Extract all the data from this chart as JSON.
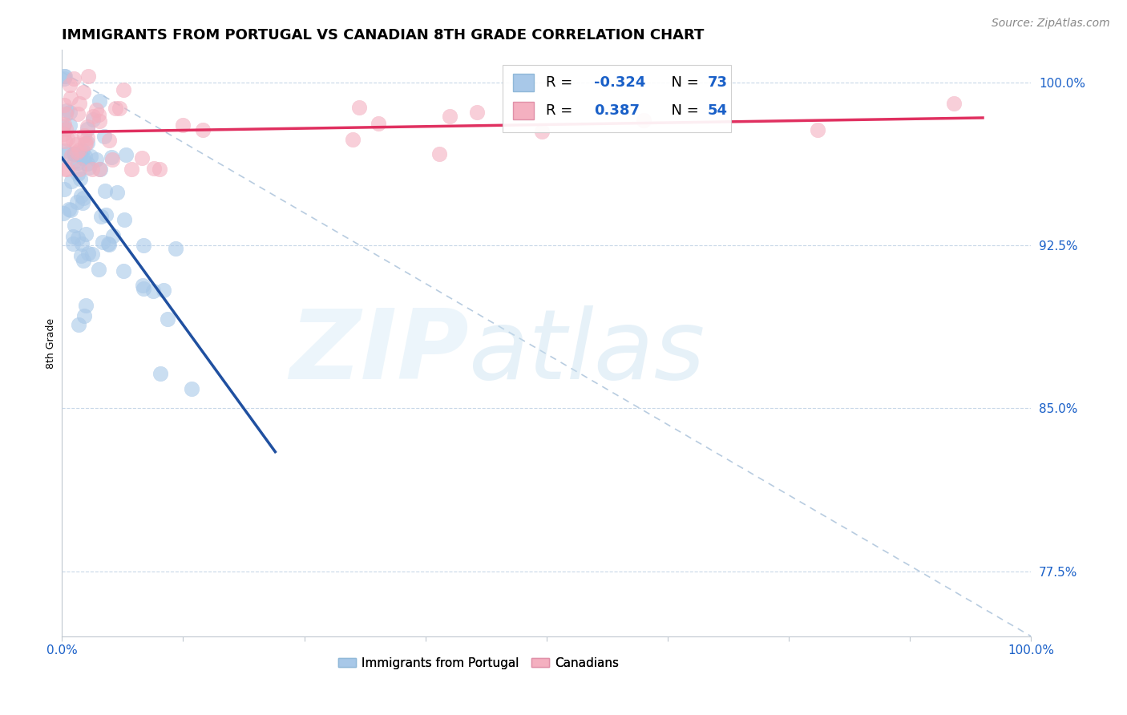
{
  "title": "IMMIGRANTS FROM PORTUGAL VS CANADIAN 8TH GRADE CORRELATION CHART",
  "source": "Source: ZipAtlas.com",
  "ylabel": "8th Grade",
  "ytick_values": [
    0.775,
    0.85,
    0.925,
    1.0
  ],
  "ytick_labels": [
    "77.5%",
    "85.0%",
    "92.5%",
    "100.0%"
  ],
  "blue_R": -0.324,
  "blue_N": 73,
  "pink_R": 0.387,
  "pink_N": 54,
  "blue_color": "#a8c8e8",
  "pink_color": "#f4b0c0",
  "blue_line_color": "#2050a0",
  "pink_line_color": "#e03060",
  "dashed_line_color": "#b8cce0",
  "legend_text_color": "#1a60c8",
  "grid_color": "#c8d8e8",
  "spine_color": "#c0c8d0",
  "ytick_color": "#1a60c8",
  "xtick_color": "#1a60c8",
  "title_fontsize": 13,
  "source_fontsize": 10,
  "legend_fontsize": 13,
  "tick_fontsize": 11,
  "ylabel_fontsize": 9,
  "scatter_size": 180,
  "scatter_alpha": 0.6,
  "xlim": [
    0.0,
    1.0
  ],
  "ylim": [
    0.745,
    1.015
  ]
}
